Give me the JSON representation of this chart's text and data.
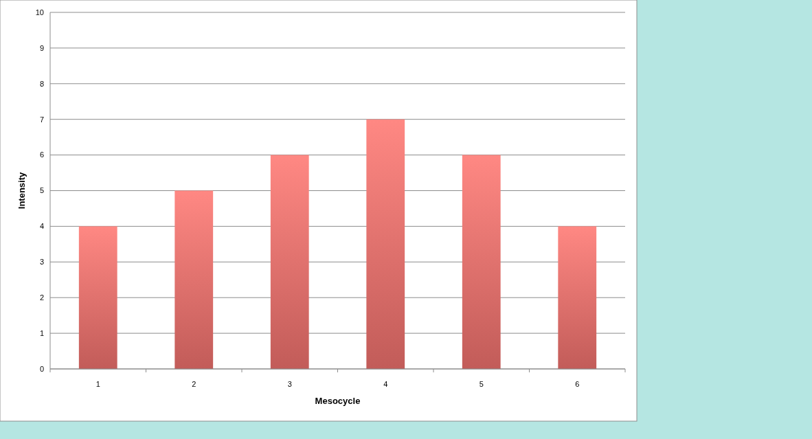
{
  "chart_data": {
    "type": "bar",
    "xlabel": "Mesocycle",
    "ylabel": "Intensity",
    "categories": [
      "1",
      "2",
      "3",
      "4",
      "5",
      "6"
    ],
    "values": [
      4,
      5,
      6,
      7,
      6,
      4
    ],
    "color": "#e86e6a",
    "ylim": [
      0,
      10
    ],
    "yticks": [
      0,
      1,
      2,
      3,
      4,
      5,
      6,
      7,
      8,
      9,
      10
    ],
    "grid": "y"
  }
}
